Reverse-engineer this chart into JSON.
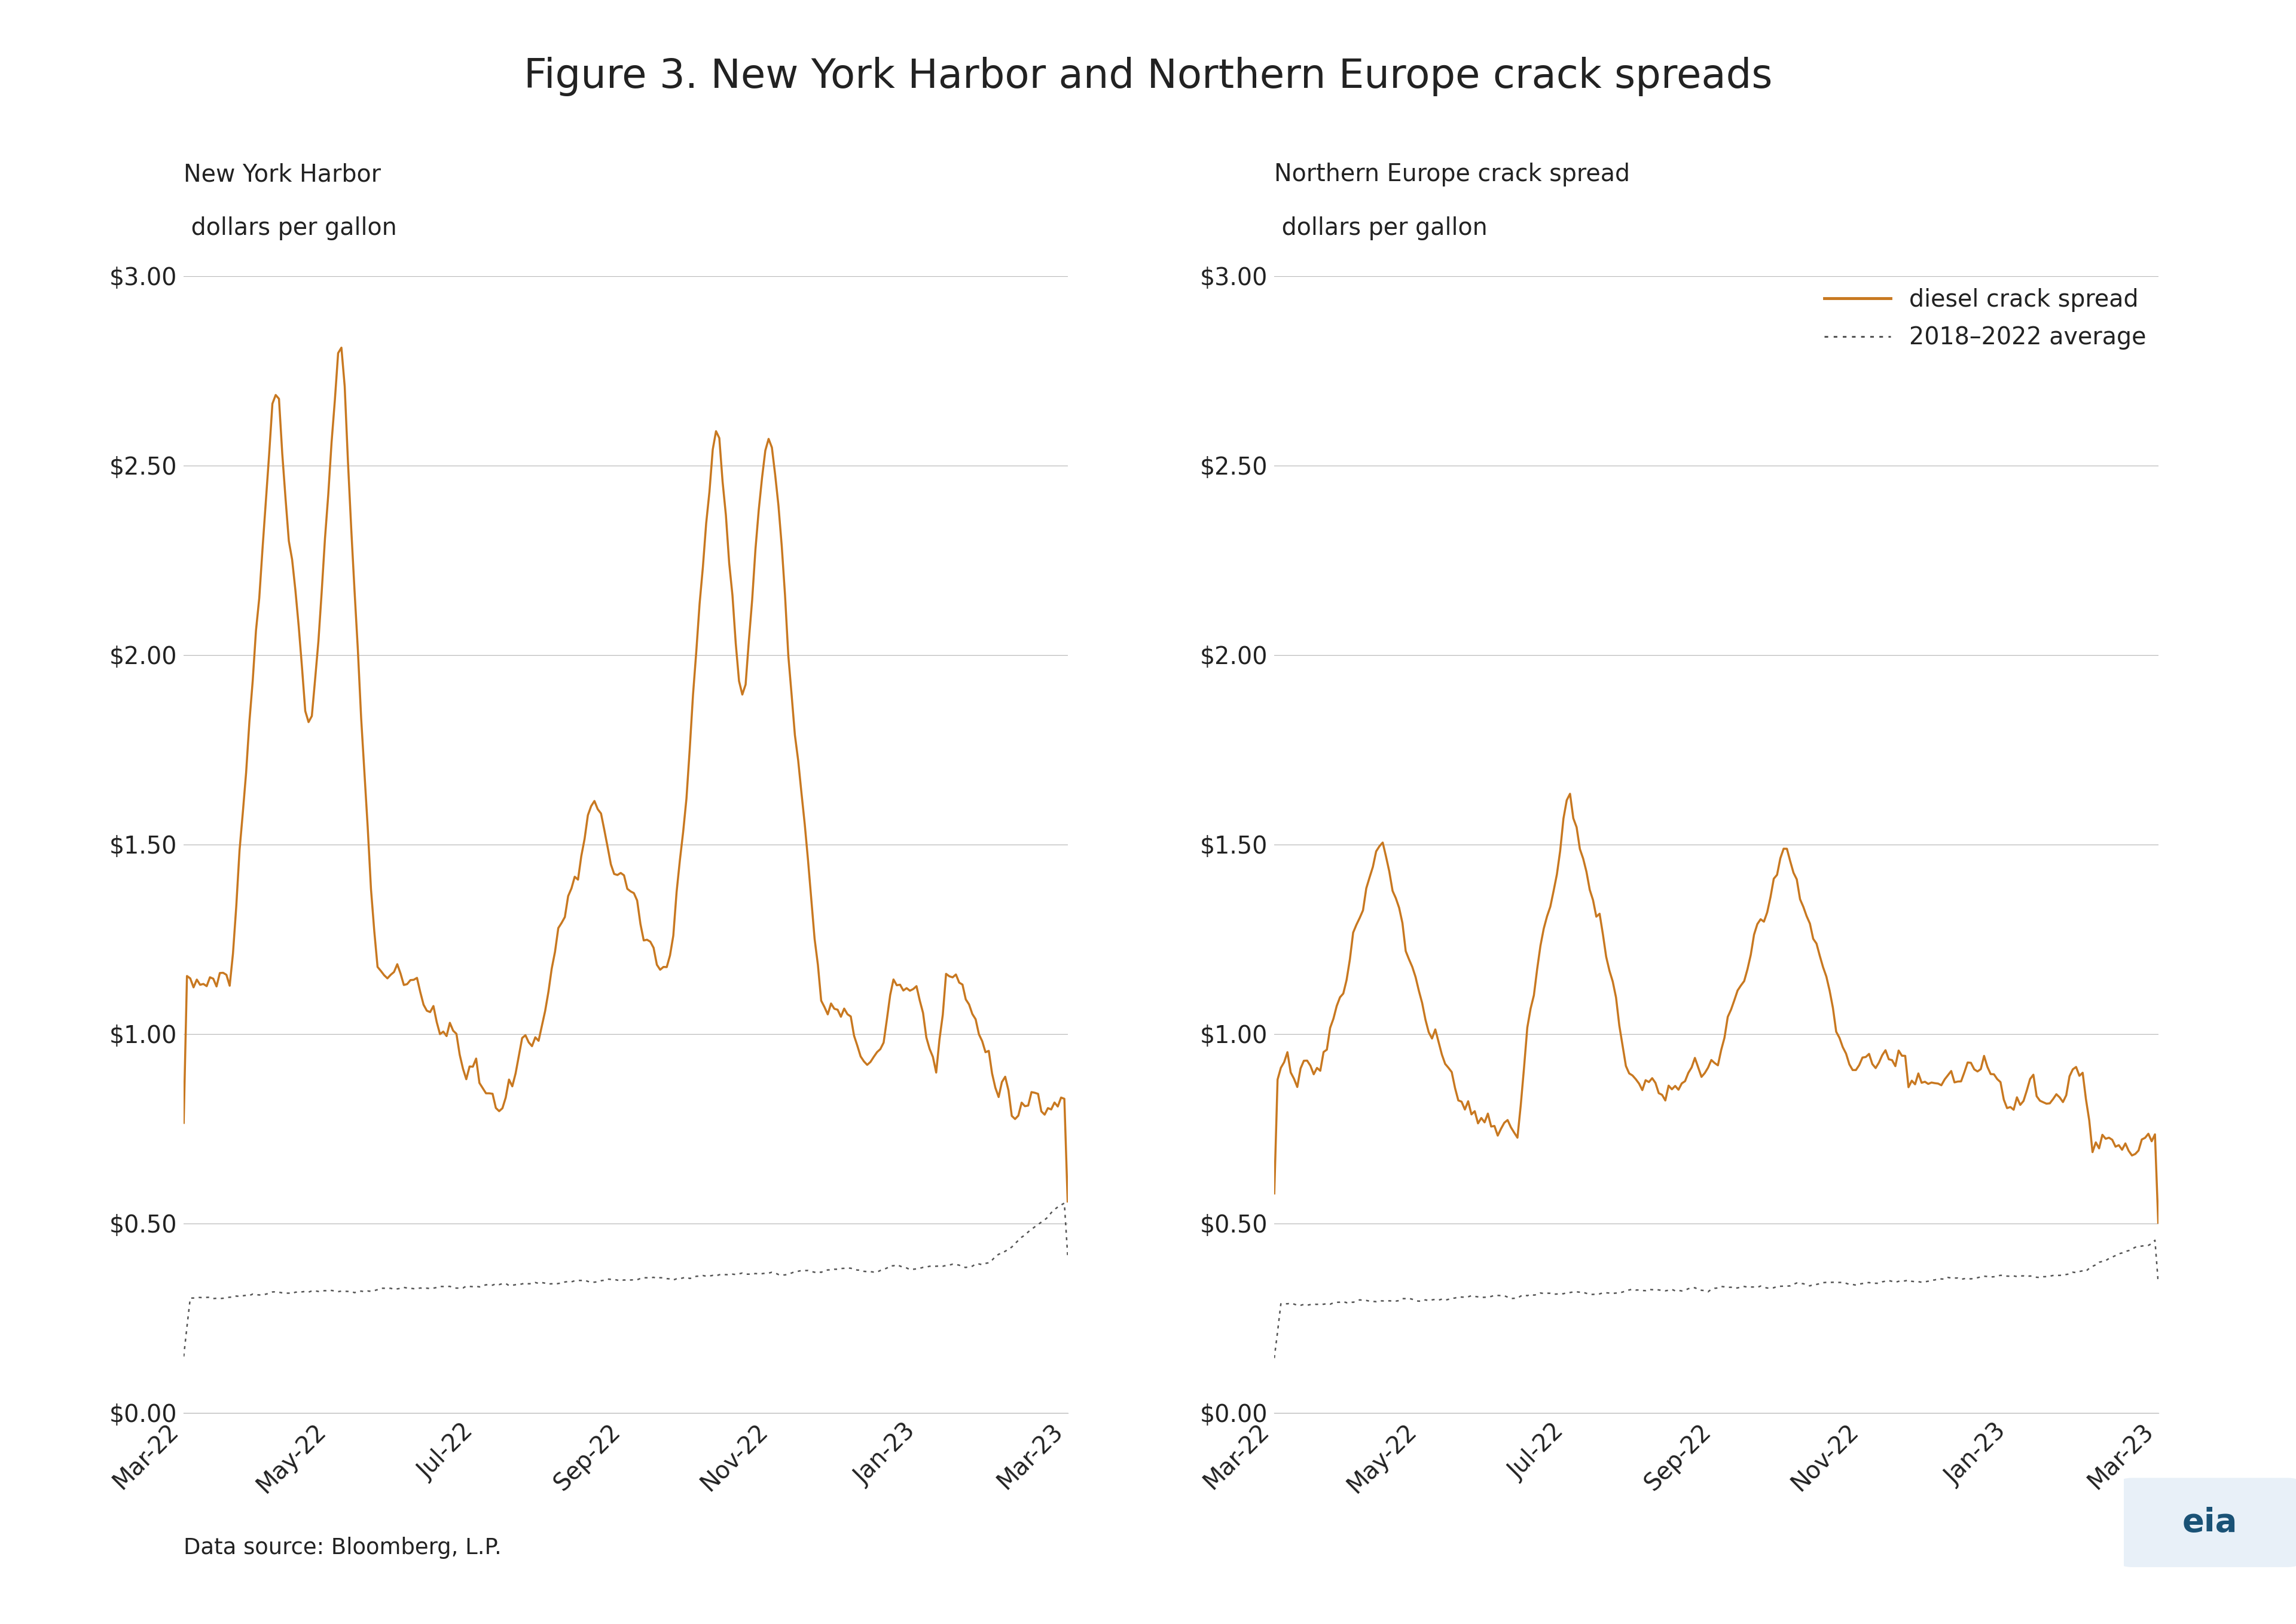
{
  "title": "Figure 3. New York Harbor and Northern Europe crack spreads",
  "left_subtitle_line1": "New York Harbor",
  "left_subtitle_line2": " dollars per gallon",
  "right_subtitle_line1": "Northern Europe crack spread",
  "right_subtitle_line2": " dollars per gallon",
  "diesel_color": "#C87820",
  "avg_color": "#555555",
  "background_color": "#FFFFFF",
  "text_color": "#222222",
  "grid_color": "#BBBBBB",
  "ylim": [
    0.0,
    3.0
  ],
  "yticks": [
    0.0,
    0.5,
    1.0,
    1.5,
    2.0,
    2.5,
    3.0
  ],
  "ytick_labels": [
    "$0.00",
    "$0.50",
    "$1.00",
    "$1.50",
    "$2.00",
    "$2.50",
    "$3.00"
  ],
  "xtick_labels": [
    "Mar-22",
    "May-22",
    "Jul-22",
    "Sep-22",
    "Nov-22",
    "Jan-23",
    "Mar-23"
  ],
  "legend_diesel": "diesel crack spread",
  "legend_avg": "2018–2022 average",
  "source": "Data source: Bloomberg, L.P.",
  "title_fontsize": 22,
  "subtitle_fontsize": 15,
  "tick_fontsize": 15,
  "legend_fontsize": 15,
  "source_fontsize": 14
}
